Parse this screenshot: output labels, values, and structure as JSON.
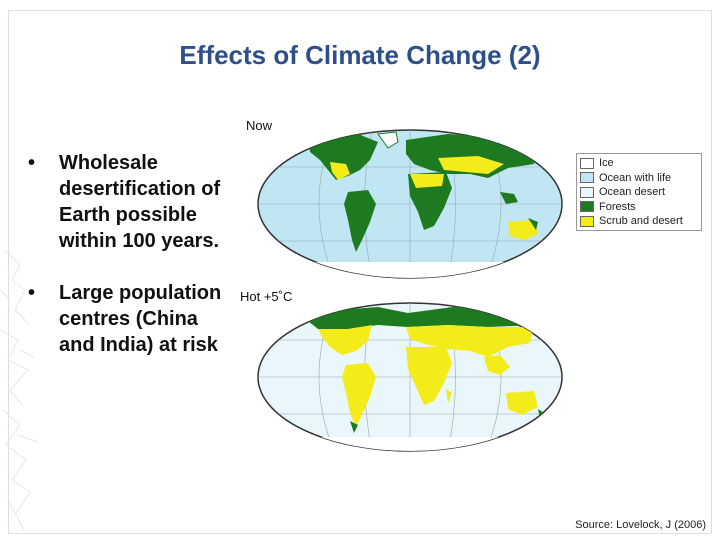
{
  "slide": {
    "title": "Effects of Climate Change (2)",
    "bullets": [
      "Wholesale desertification of Earth possible within 100 years.",
      "Large population centres (China and India) at risk"
    ],
    "source": "Source: Lovelock, J (2006)"
  },
  "maps": {
    "top_label": "Now",
    "bottom_label": "Hot +5˚C"
  },
  "legend": [
    {
      "label": "Ice",
      "color": "#ffffff"
    },
    {
      "label": "Ocean with life",
      "color": "#bfe6f2"
    },
    {
      "label": "Ocean desert",
      "color": "#e9f6fb"
    },
    {
      "label": "Forests",
      "color": "#1d7a20"
    },
    {
      "label": "Scrub and desert",
      "color": "#f3ec1a"
    }
  ]
}
